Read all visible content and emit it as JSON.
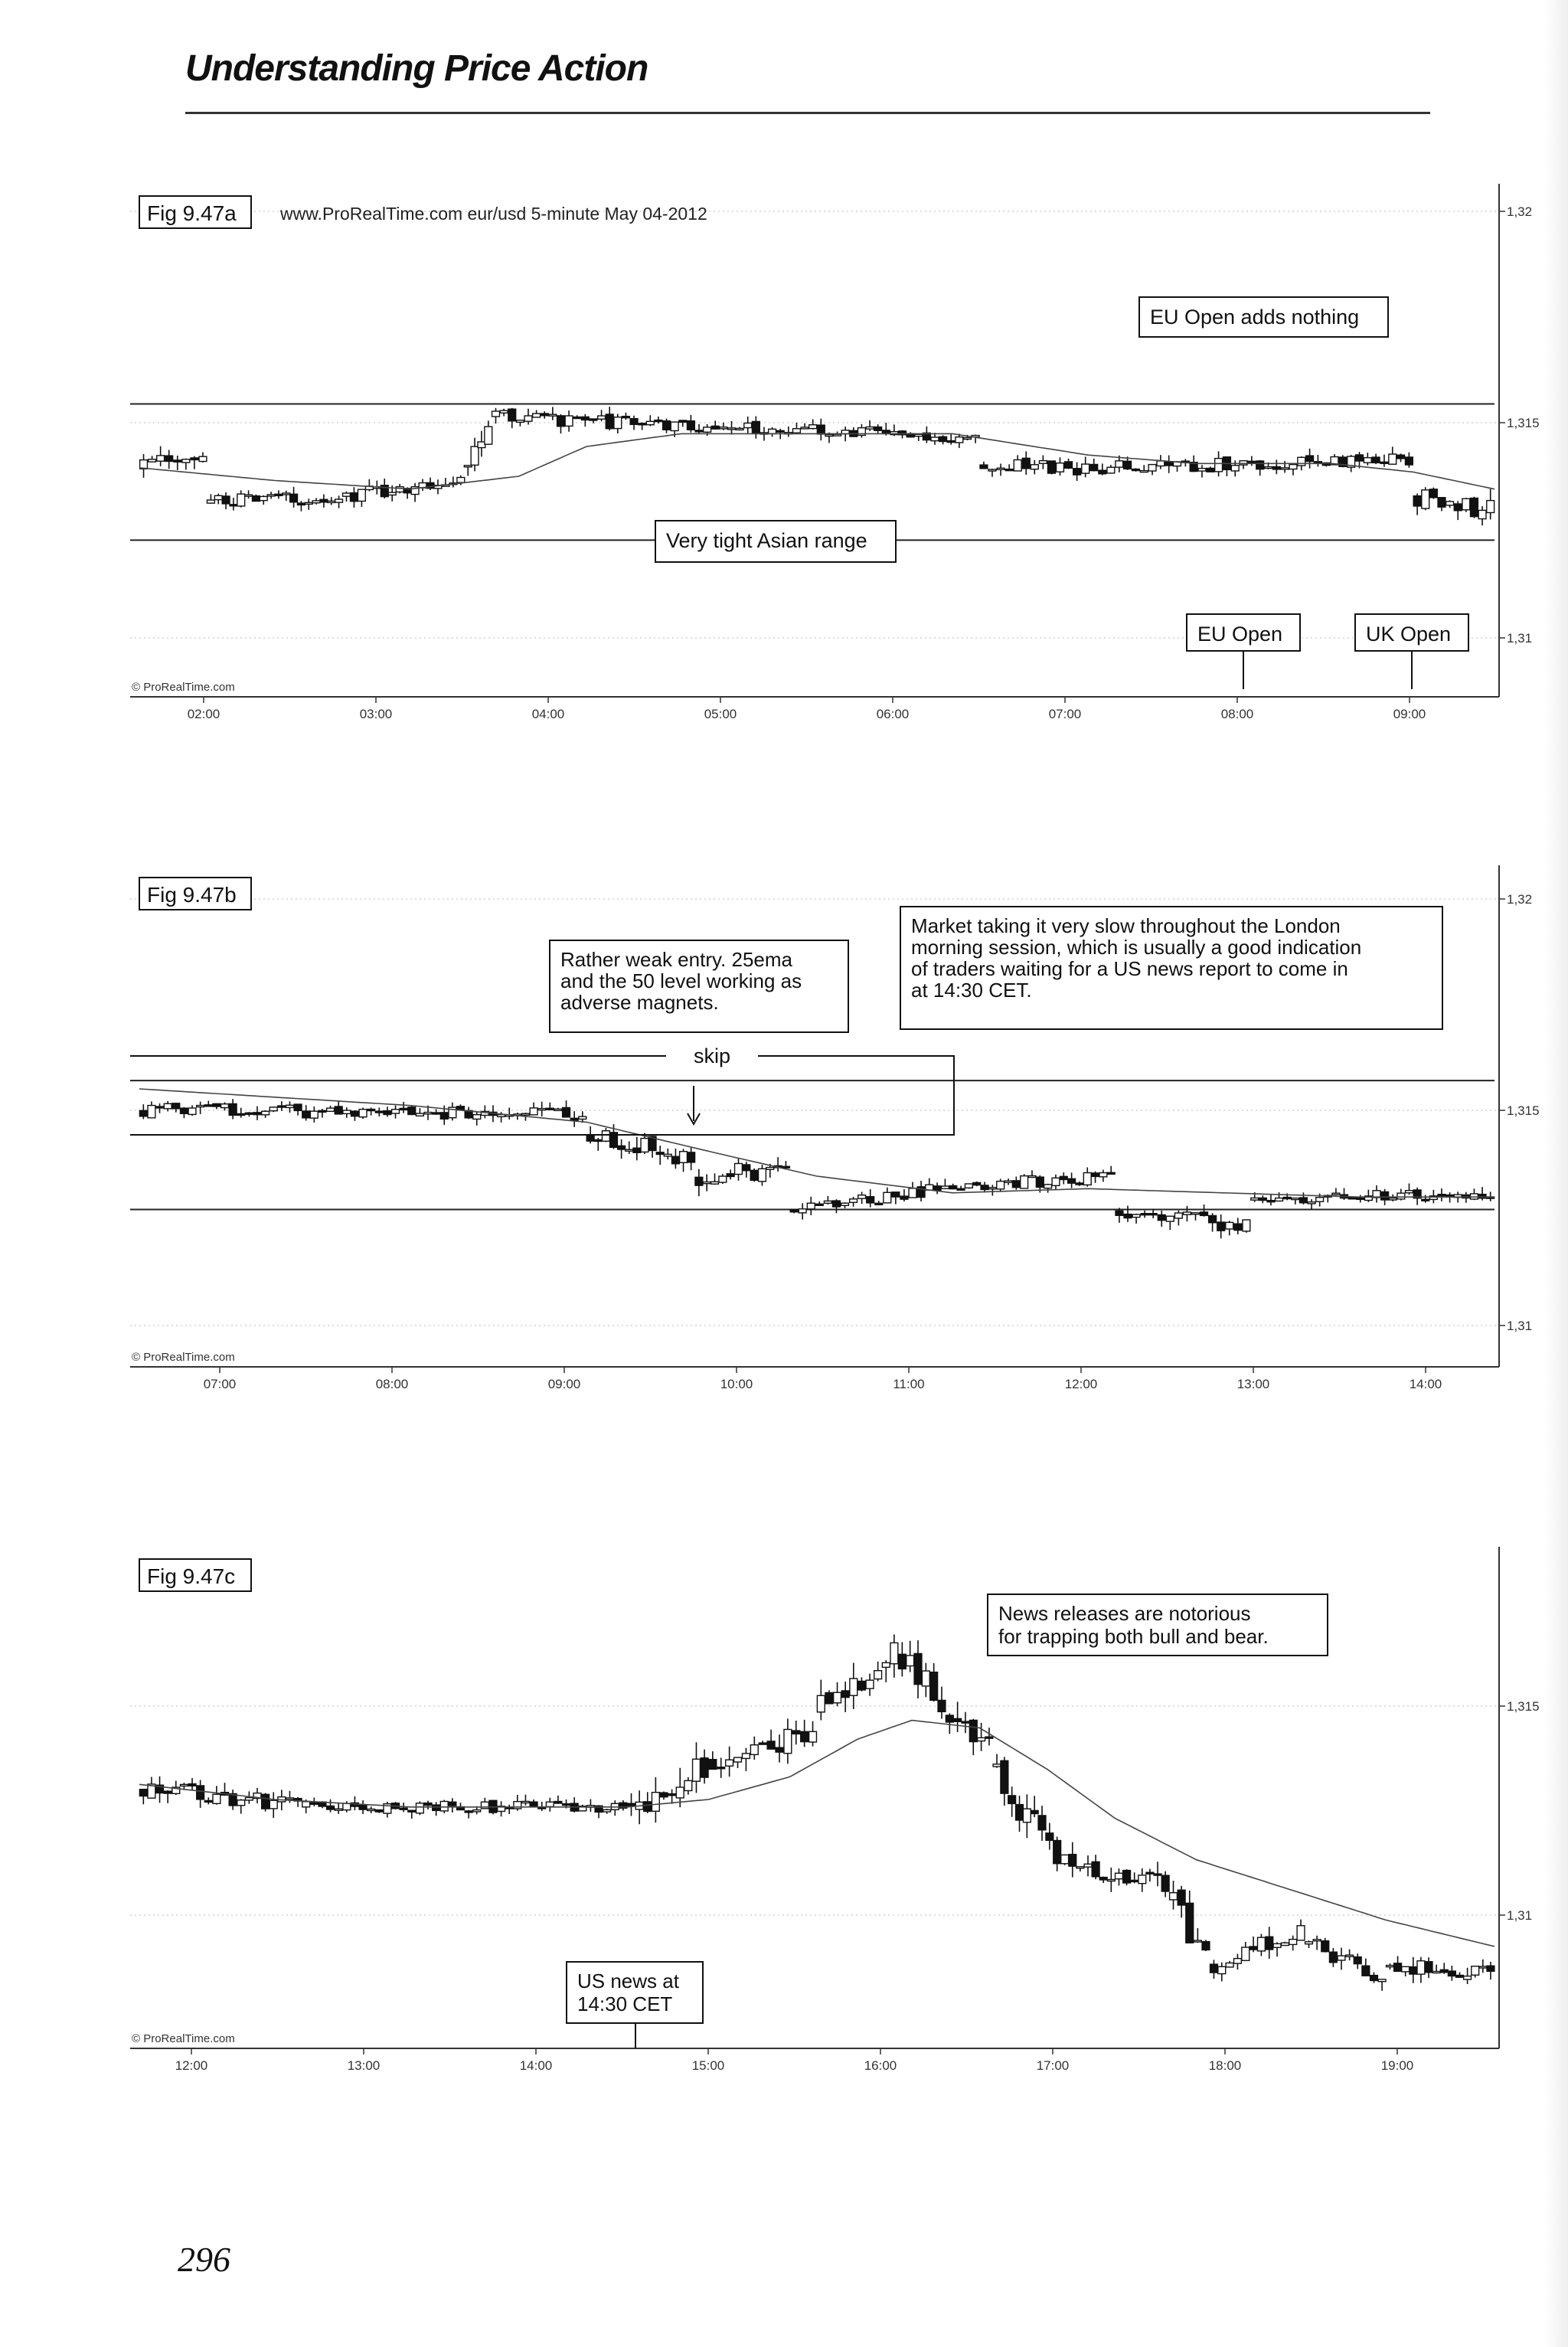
{
  "header": {
    "running_head": "Understanding Price Action"
  },
  "page_number": "296",
  "figures": [
    {
      "id": "fig-947a",
      "fig_label": "Fig 9.47a",
      "header_text": "www.ProRealTime.com    eur/usd 5-minute May 04-2012",
      "copyright": "© ProRealTime.com",
      "price_ticks": [
        "1,32",
        "1,315",
        "1,31"
      ],
      "time_ticks": [
        "02:00",
        "03:00",
        "04:00",
        "05:00",
        "06:00",
        "07:00",
        "08:00",
        "09:00"
      ],
      "annotations": [
        {
          "id": "eu-open-adds-nothing",
          "text": "EU Open adds nothing"
        },
        {
          "id": "very-tight-asian-range",
          "text": "Very tight Asian range"
        },
        {
          "id": "eu-open",
          "text": "EU Open"
        },
        {
          "id": "uk-open",
          "text": "UK Open"
        }
      ]
    },
    {
      "id": "fig-947b",
      "fig_label": "Fig 9.47b",
      "copyright": "© ProRealTime.com",
      "price_ticks": [
        "1,32",
        "1,315",
        "1,31"
      ],
      "time_ticks": [
        "07:00",
        "08:00",
        "09:00",
        "10:00",
        "11:00",
        "12:00",
        "13:00",
        "14:00"
      ],
      "skip_label": "skip",
      "annotations": [
        {
          "id": "weak-entry",
          "lines": [
            "Rather weak entry. 25ema",
            "and the 50 level working as",
            "adverse magnets."
          ]
        },
        {
          "id": "market-slow",
          "lines": [
            "Market taking it very slow throughout the London",
            "morning session, which is usually a good indication",
            "of traders waiting for a US news report to come in",
            "at 14:30 CET."
          ]
        }
      ]
    },
    {
      "id": "fig-947c",
      "fig_label": "Fig 9.47c",
      "copyright": "© ProRealTime.com",
      "price_ticks": [
        "1,315",
        "1,31"
      ],
      "time_ticks": [
        "12:00",
        "13:00",
        "14:00",
        "15:00",
        "16:00",
        "17:00",
        "18:00",
        "19:00"
      ],
      "annotations": [
        {
          "id": "news-trap",
          "lines": [
            "News releases are notorious",
            "for trapping both bull and bear."
          ]
        },
        {
          "id": "us-news",
          "lines": [
            "US news at",
            "14:30 CET"
          ]
        }
      ]
    }
  ],
  "chart_data": [
    {
      "type": "candlestick",
      "title": "Fig 9.47a",
      "instrument": "eur/usd",
      "timeframe": "5-minute",
      "date": "May 04-2012",
      "x_range": [
        "01:40",
        "09:25"
      ],
      "ylim": [
        1.3098,
        1.3214
      ],
      "horizontal_lines": [
        1.3165,
        1.3133
      ],
      "ema_period": 25,
      "ema": [
        [
          0,
          1.315
        ],
        [
          0.1,
          1.3147
        ],
        [
          0.2,
          1.3145
        ],
        [
          0.28,
          1.3148
        ],
        [
          0.33,
          1.3155
        ],
        [
          0.4,
          1.3158
        ],
        [
          0.5,
          1.3158
        ],
        [
          0.6,
          1.3158
        ],
        [
          0.7,
          1.3153
        ],
        [
          0.78,
          1.3151
        ],
        [
          0.88,
          1.3151
        ],
        [
          0.94,
          1.3149
        ],
        [
          1.0,
          1.3145
        ]
      ],
      "segments": [
        {
          "t0": 0.0,
          "t1": 0.05,
          "p0": 1.315,
          "p1": 1.3153,
          "noise": 0.00025,
          "n": 8
        },
        {
          "t0": 0.05,
          "t1": 0.15,
          "p0": 1.3142,
          "p1": 1.3143,
          "noise": 0.0002,
          "n": 18
        },
        {
          "t0": 0.15,
          "t1": 0.24,
          "p0": 1.3143,
          "p1": 1.3148,
          "noise": 0.0002,
          "n": 16
        },
        {
          "t0": 0.24,
          "t1": 0.26,
          "p0": 1.315,
          "p1": 1.3162,
          "noise": 0.0003,
          "n": 4
        },
        {
          "t0": 0.26,
          "t1": 0.62,
          "p0": 1.3162,
          "p1": 1.3157,
          "noise": 0.0002,
          "n": 60
        },
        {
          "t0": 0.62,
          "t1": 0.72,
          "p0": 1.3151,
          "p1": 1.3149,
          "noise": 0.0002,
          "n": 16
        },
        {
          "t0": 0.72,
          "t1": 0.94,
          "p0": 1.315,
          "p1": 1.3152,
          "noise": 0.0002,
          "n": 36
        },
        {
          "t0": 0.94,
          "t1": 1.0,
          "p0": 1.3143,
          "p1": 1.314,
          "noise": 0.0003,
          "n": 10
        }
      ]
    },
    {
      "type": "candlestick",
      "title": "Fig 9.47b",
      "instrument": "eur/usd",
      "timeframe": "5-minute",
      "date": "May 04-2012",
      "x_range": [
        "06:40",
        "14:25"
      ],
      "ylim": [
        1.3098,
        1.3214
      ],
      "horizontal_lines": [
        1.3165,
        1.3134
      ],
      "ema_period": 25,
      "ema": [
        [
          0,
          1.3163
        ],
        [
          0.1,
          1.3161
        ],
        [
          0.2,
          1.3159
        ],
        [
          0.33,
          1.3155
        ],
        [
          0.42,
          1.3148
        ],
        [
          0.5,
          1.3142
        ],
        [
          0.6,
          1.3138
        ],
        [
          0.7,
          1.3139
        ],
        [
          0.8,
          1.3138
        ],
        [
          0.9,
          1.3137
        ],
        [
          1.0,
          1.3137
        ]
      ],
      "segments": [
        {
          "t0": 0.0,
          "t1": 0.33,
          "p0": 1.3158,
          "p1": 1.3157,
          "noise": 0.0002,
          "n": 55
        },
        {
          "t0": 0.33,
          "t1": 0.41,
          "p0": 1.3152,
          "p1": 1.3146,
          "noise": 0.0003,
          "n": 14
        },
        {
          "t0": 0.41,
          "t1": 0.48,
          "p0": 1.3142,
          "p1": 1.3144,
          "noise": 0.0003,
          "n": 12
        },
        {
          "t0": 0.48,
          "t1": 0.58,
          "p0": 1.3134,
          "p1": 1.3138,
          "noise": 0.0002,
          "n": 16
        },
        {
          "t0": 0.58,
          "t1": 0.72,
          "p0": 1.3139,
          "p1": 1.3142,
          "noise": 0.0002,
          "n": 24
        },
        {
          "t0": 0.72,
          "t1": 0.82,
          "p0": 1.3134,
          "p1": 1.313,
          "noise": 0.00025,
          "n": 16
        },
        {
          "t0": 0.82,
          "t1": 1.0,
          "p0": 1.3136,
          "p1": 1.3138,
          "noise": 0.0002,
          "n": 30
        }
      ]
    },
    {
      "type": "candlestick",
      "title": "Fig 9.47c",
      "instrument": "eur/usd",
      "timeframe": "5-minute",
      "date": "May 04-2012",
      "x_range": [
        "11:40",
        "19:25"
      ],
      "ylim": [
        1.3068,
        1.3197
      ],
      "horizontal_lines": [],
      "ema_period": 25,
      "ema": [
        [
          0,
          1.3136
        ],
        [
          0.1,
          1.3132
        ],
        [
          0.2,
          1.313
        ],
        [
          0.3,
          1.313
        ],
        [
          0.36,
          1.313
        ],
        [
          0.42,
          1.3132
        ],
        [
          0.48,
          1.3138
        ],
        [
          0.53,
          1.3148
        ],
        [
          0.57,
          1.3153
        ],
        [
          0.62,
          1.3151
        ],
        [
          0.67,
          1.314
        ],
        [
          0.72,
          1.3127
        ],
        [
          0.78,
          1.3116
        ],
        [
          0.85,
          1.3108
        ],
        [
          0.92,
          1.31
        ],
        [
          1.0,
          1.3093
        ]
      ],
      "segments": [
        {
          "t0": 0.0,
          "t1": 0.12,
          "p0": 1.3135,
          "p1": 1.313,
          "noise": 0.0003,
          "n": 20
        },
        {
          "t0": 0.12,
          "t1": 0.36,
          "p0": 1.313,
          "p1": 1.313,
          "noise": 0.0002,
          "n": 40
        },
        {
          "t0": 0.36,
          "t1": 0.42,
          "p0": 1.313,
          "p1": 1.314,
          "noise": 0.0006,
          "n": 10
        },
        {
          "t0": 0.42,
          "t1": 0.5,
          "p0": 1.3142,
          "p1": 1.315,
          "noise": 0.0004,
          "n": 13
        },
        {
          "t0": 0.5,
          "t1": 0.56,
          "p0": 1.3155,
          "p1": 1.3172,
          "noise": 0.0005,
          "n": 10
        },
        {
          "t0": 0.56,
          "t1": 0.63,
          "p0": 1.317,
          "p1": 1.3145,
          "noise": 0.0005,
          "n": 12
        },
        {
          "t0": 0.63,
          "t1": 0.68,
          "p0": 1.314,
          "p1": 1.3115,
          "noise": 0.0005,
          "n": 9
        },
        {
          "t0": 0.68,
          "t1": 0.76,
          "p0": 1.3115,
          "p1": 1.311,
          "noise": 0.0004,
          "n": 14
        },
        {
          "t0": 0.76,
          "t1": 0.79,
          "p0": 1.3105,
          "p1": 1.309,
          "noise": 0.0005,
          "n": 5
        },
        {
          "t0": 0.79,
          "t1": 0.86,
          "p0": 1.3088,
          "p1": 1.3098,
          "noise": 0.0003,
          "n": 12
        },
        {
          "t0": 0.86,
          "t1": 0.92,
          "p0": 1.3094,
          "p1": 1.3084,
          "noise": 0.0003,
          "n": 10
        },
        {
          "t0": 0.92,
          "t1": 1.0,
          "p0": 1.3088,
          "p1": 1.3086,
          "noise": 0.0003,
          "n": 14
        }
      ]
    }
  ]
}
